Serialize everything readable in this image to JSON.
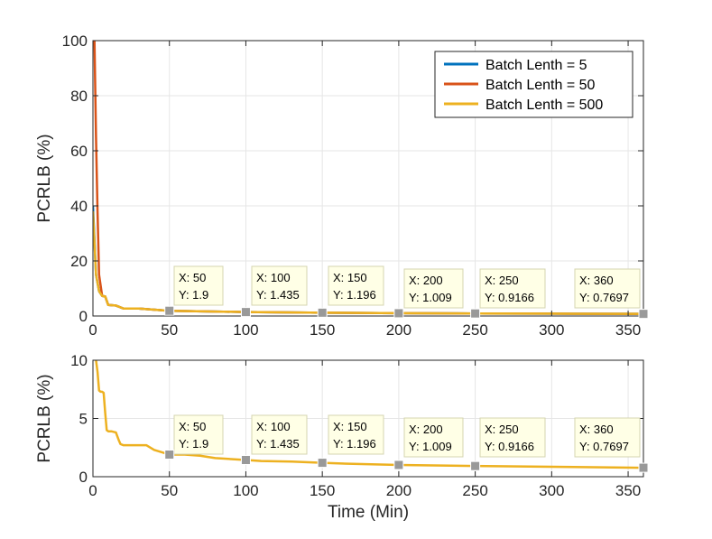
{
  "chart_data": [
    {
      "type": "line",
      "xlabel": "",
      "ylabel": "PCRLB (%)",
      "xlim": [
        0,
        360
      ],
      "ylim": [
        0,
        100
      ],
      "xticks": [
        0,
        50,
        100,
        150,
        200,
        250,
        300,
        350
      ],
      "yticks": [
        0,
        20,
        40,
        60,
        80,
        100
      ],
      "grid": true,
      "legend_position": "top-right",
      "series": [
        {
          "name": "Batch Lenth = 5",
          "color": "#0072BD",
          "x": [
            0,
            2,
            4,
            6,
            8,
            10,
            15,
            20,
            25,
            30,
            40,
            50,
            100,
            150,
            200,
            250,
            300,
            360
          ],
          "y": [
            40,
            15,
            9,
            7.3,
            7.1,
            4,
            3.8,
            2.7,
            2.7,
            2.7,
            2.3,
            1.9,
            1.435,
            1.196,
            1.009,
            0.9166,
            0.85,
            0.7697
          ]
        },
        {
          "name": "Batch Lenth = 50",
          "color": "#D95319",
          "x": [
            0,
            1,
            2,
            3,
            4,
            6,
            8,
            10,
            15,
            20,
            25,
            30,
            40,
            50,
            100,
            150,
            200,
            250,
            300,
            360
          ],
          "y": [
            100,
            100,
            65,
            38,
            15,
            7.3,
            7.1,
            4,
            3.8,
            2.7,
            2.7,
            2.7,
            2.3,
            1.9,
            1.435,
            1.196,
            1.009,
            0.9166,
            0.85,
            0.7697
          ]
        },
        {
          "name": "Batch Lenth = 500",
          "color": "#EDB120",
          "x": [
            0,
            2,
            4,
            6,
            8,
            10,
            15,
            20,
            25,
            30,
            40,
            50,
            100,
            150,
            200,
            250,
            300,
            360
          ],
          "y": [
            38,
            15,
            9,
            7.3,
            7.1,
            4,
            3.8,
            2.7,
            2.7,
            2.7,
            2.3,
            1.9,
            1.435,
            1.196,
            1.009,
            0.9166,
            0.85,
            0.7697
          ]
        }
      ],
      "datatips": [
        {
          "x": 50,
          "y": 1.9,
          "x_text": "X: 50",
          "y_text": "Y: 1.9"
        },
        {
          "x": 100,
          "y": 1.435,
          "x_text": "X: 100",
          "y_text": "Y: 1.435"
        },
        {
          "x": 150,
          "y": 1.196,
          "x_text": "X: 150",
          "y_text": "Y: 1.196"
        },
        {
          "x": 200,
          "y": 1.009,
          "x_text": "X: 200",
          "y_text": "Y: 1.009"
        },
        {
          "x": 250,
          "y": 0.9166,
          "x_text": "X: 250",
          "y_text": "Y: 0.9166"
        },
        {
          "x": 360,
          "y": 0.7697,
          "x_text": "X: 360",
          "y_text": "Y: 0.7697"
        }
      ]
    },
    {
      "type": "line",
      "xlabel": "Time (Min)",
      "ylabel": "PCRLB (%)",
      "xlim": [
        0,
        360
      ],
      "ylim": [
        0,
        10
      ],
      "xticks": [
        0,
        50,
        100,
        150,
        200,
        250,
        300,
        350
      ],
      "yticks": [
        0,
        5,
        10
      ],
      "grid": true,
      "series": [
        {
          "name": "Batch Lenth = 500",
          "color": "#EDB120",
          "x": [
            2,
            3,
            4,
            5,
            6,
            7,
            8,
            9,
            10,
            12,
            15,
            17,
            18,
            20,
            25,
            30,
            35,
            40,
            50,
            60,
            70,
            80,
            100,
            110,
            130,
            150,
            170,
            200,
            250,
            300,
            360
          ],
          "y": [
            10,
            9,
            7.4,
            7.3,
            7.3,
            7.2,
            5.5,
            4,
            3.9,
            3.9,
            3.8,
            3.1,
            2.8,
            2.7,
            2.7,
            2.7,
            2.7,
            2.3,
            1.9,
            1.9,
            1.8,
            1.6,
            1.435,
            1.35,
            1.3,
            1.196,
            1.1,
            1.009,
            0.9166,
            0.85,
            0.7697
          ]
        }
      ],
      "datatips": [
        {
          "x": 50,
          "y": 1.9,
          "x_text": "X: 50",
          "y_text": "Y: 1.9"
        },
        {
          "x": 100,
          "y": 1.435,
          "x_text": "X: 100",
          "y_text": "Y: 1.435"
        },
        {
          "x": 150,
          "y": 1.196,
          "x_text": "X: 150",
          "y_text": "Y: 1.196"
        },
        {
          "x": 200,
          "y": 1.009,
          "x_text": "X: 200",
          "y_text": "Y: 1.009"
        },
        {
          "x": 250,
          "y": 0.9166,
          "x_text": "X: 250",
          "y_text": "Y: 0.9166"
        },
        {
          "x": 360,
          "y": 0.7697,
          "x_text": "X: 360",
          "y_text": "Y: 0.7697"
        }
      ]
    }
  ]
}
